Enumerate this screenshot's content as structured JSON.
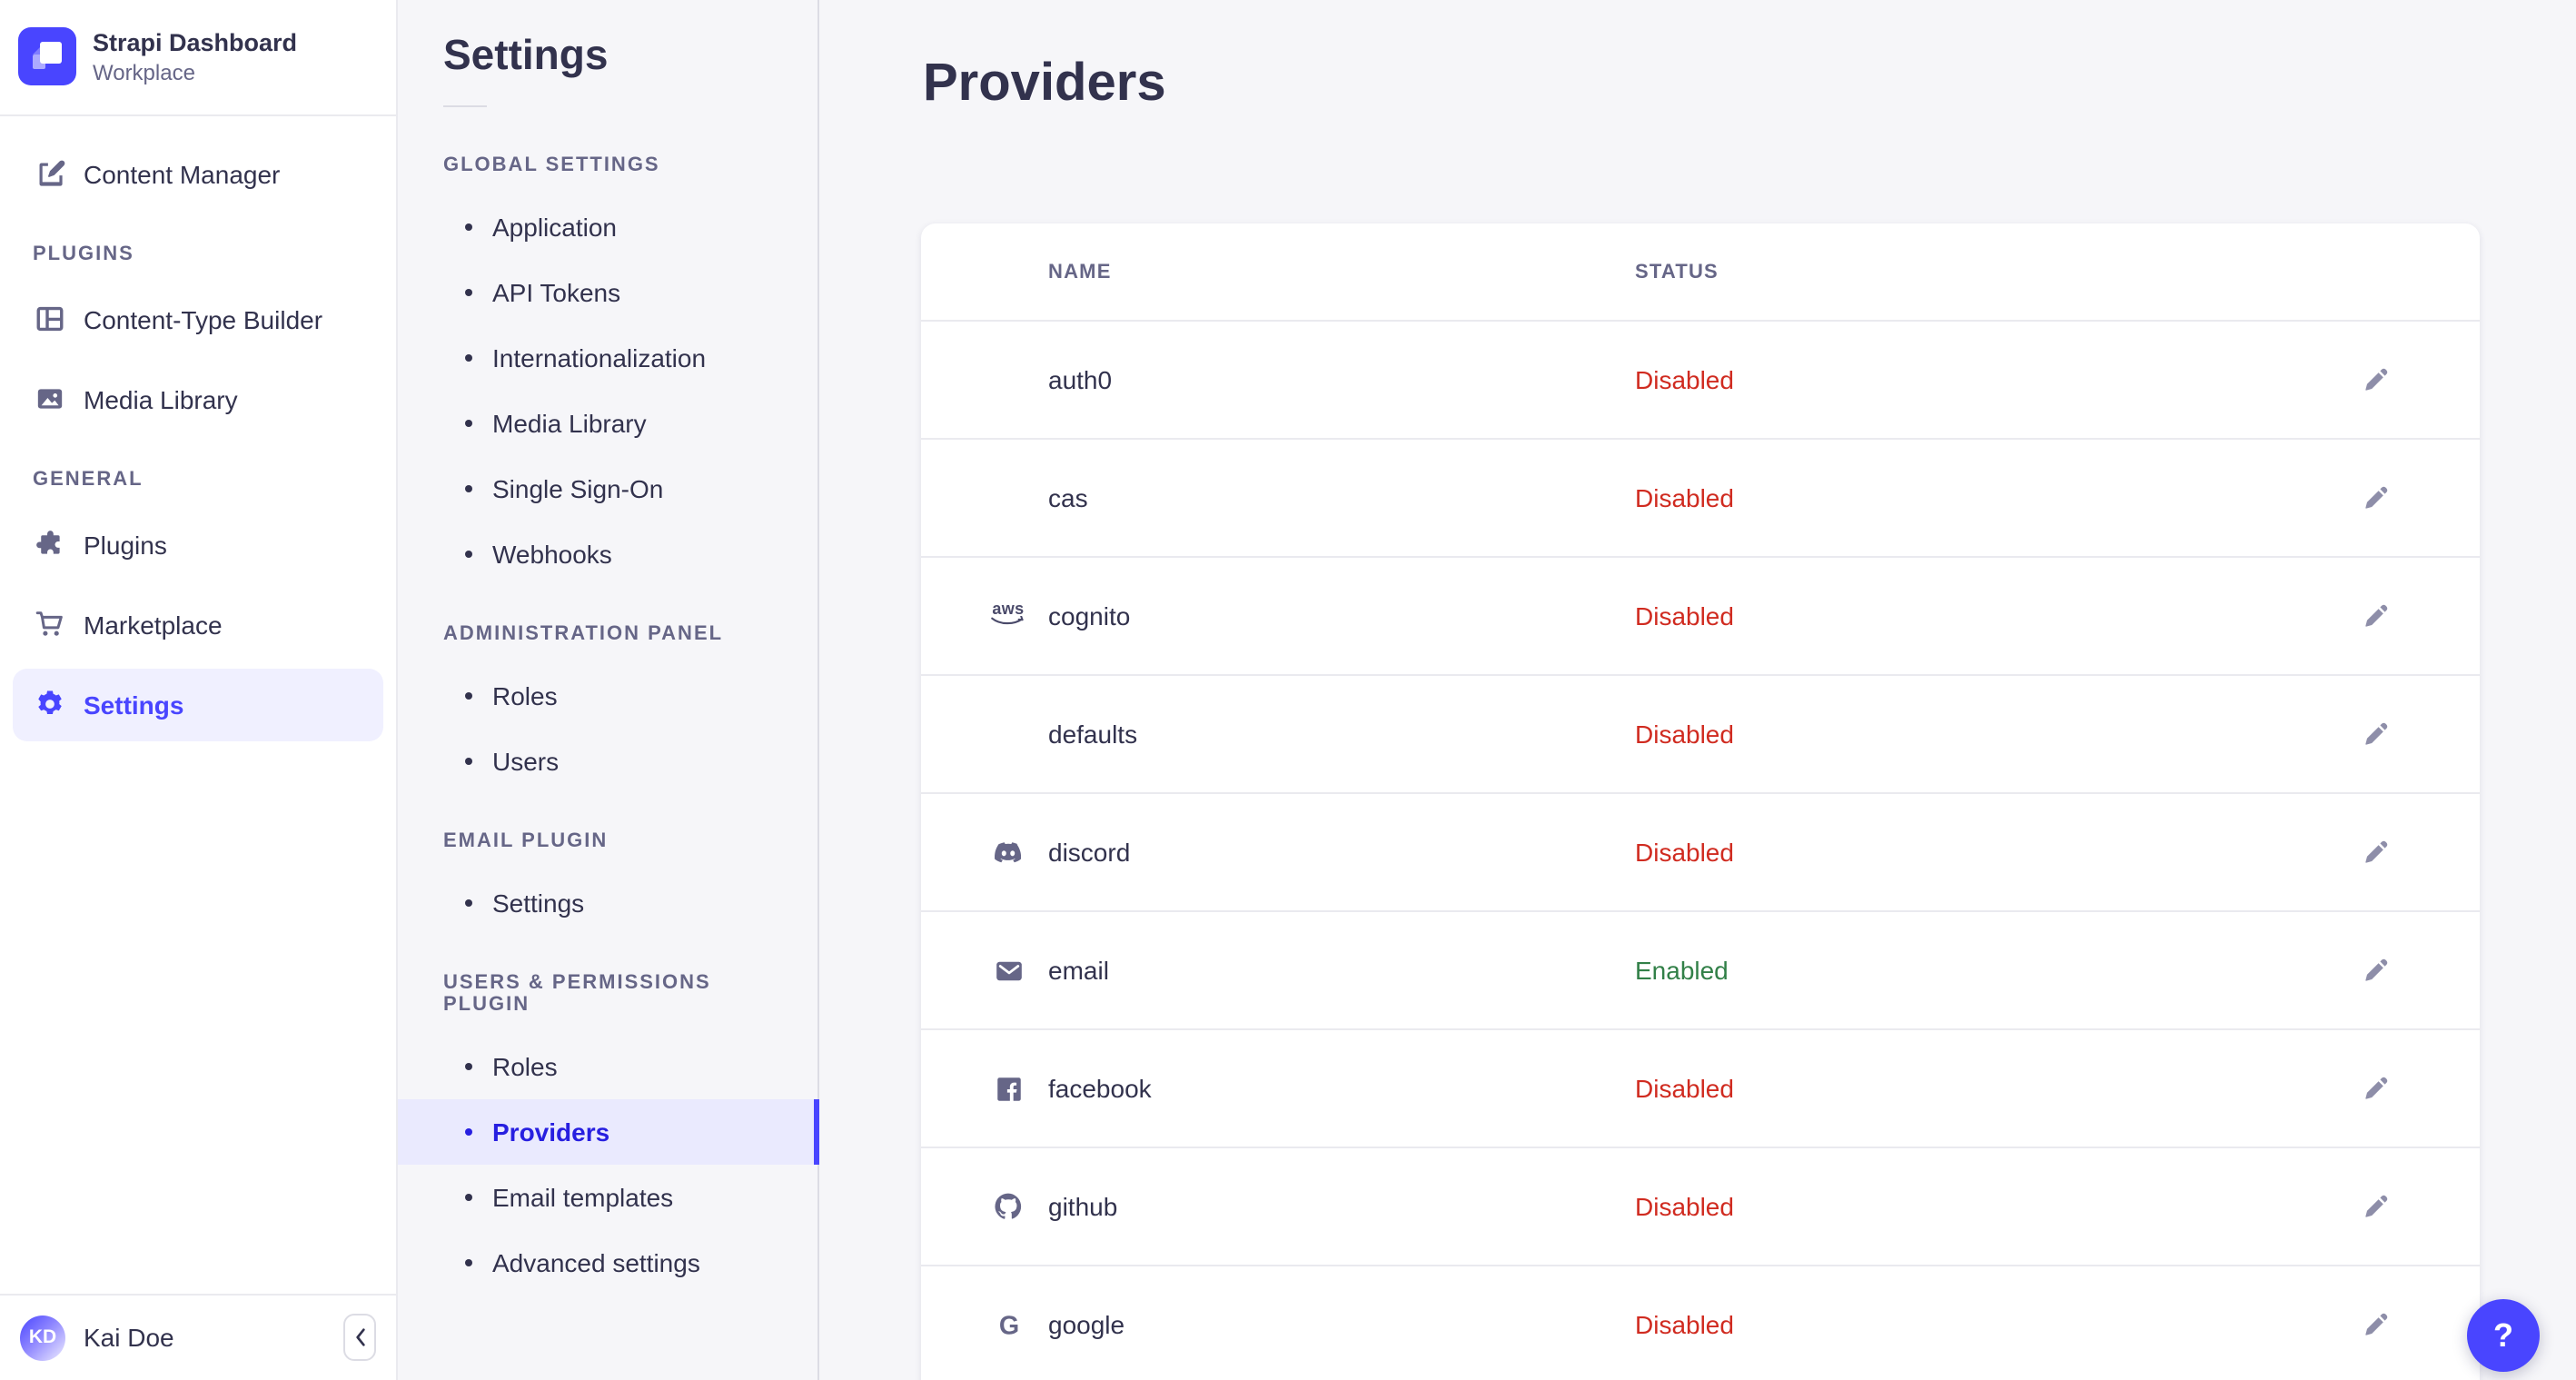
{
  "app": {
    "title": "Strapi Dashboard",
    "workspace": "Workplace"
  },
  "sidebar": {
    "primary_item": {
      "label": "Content Manager",
      "icon": "content-manager-icon"
    },
    "sections": [
      {
        "label": "PLUGINS",
        "items": [
          {
            "label": "Content-Type Builder",
            "icon": "content-type-builder-icon"
          },
          {
            "label": "Media Library",
            "icon": "media-library-icon"
          }
        ]
      },
      {
        "label": "GENERAL",
        "items": [
          {
            "label": "Plugins",
            "icon": "plugins-icon"
          },
          {
            "label": "Marketplace",
            "icon": "marketplace-icon"
          },
          {
            "label": "Settings",
            "icon": "settings-gear-icon",
            "active": true
          }
        ]
      }
    ],
    "user": {
      "initials": "KD",
      "name": "Kai Doe"
    }
  },
  "subnav": {
    "title": "Settings",
    "sections": [
      {
        "label": "GLOBAL SETTINGS",
        "items": [
          {
            "label": "Application"
          },
          {
            "label": "API Tokens"
          },
          {
            "label": "Internationalization"
          },
          {
            "label": "Media Library"
          },
          {
            "label": "Single Sign-On"
          },
          {
            "label": "Webhooks"
          }
        ]
      },
      {
        "label": "ADMINISTRATION PANEL",
        "items": [
          {
            "label": "Roles"
          },
          {
            "label": "Users"
          }
        ]
      },
      {
        "label": "EMAIL PLUGIN",
        "items": [
          {
            "label": "Settings"
          }
        ]
      },
      {
        "label": "USERS & PERMISSIONS PLUGIN",
        "items": [
          {
            "label": "Roles"
          },
          {
            "label": "Providers",
            "active": true
          },
          {
            "label": "Email templates"
          },
          {
            "label": "Advanced settings"
          }
        ]
      }
    ]
  },
  "main": {
    "page_title": "Providers",
    "table": {
      "columns": [
        "NAME",
        "STATUS"
      ],
      "rows": [
        {
          "name": "auth0",
          "icon": null,
          "status": "Disabled"
        },
        {
          "name": "cas",
          "icon": null,
          "status": "Disabled"
        },
        {
          "name": "cognito",
          "icon": "aws-icon",
          "status": "Disabled"
        },
        {
          "name": "defaults",
          "icon": null,
          "status": "Disabled"
        },
        {
          "name": "discord",
          "icon": "discord-icon",
          "status": "Disabled"
        },
        {
          "name": "email",
          "icon": "email-icon",
          "status": "Enabled"
        },
        {
          "name": "facebook",
          "icon": "facebook-icon",
          "status": "Disabled"
        },
        {
          "name": "github",
          "icon": "github-icon",
          "status": "Disabled"
        },
        {
          "name": "google",
          "icon": "google-icon",
          "status": "Disabled"
        }
      ]
    }
  },
  "help": {
    "label": "?"
  },
  "colors": {
    "primary": "#4945FF",
    "primary_light": "#F0F0FF",
    "subnav_active_text": "#271FE0",
    "status_enabled": "#328048",
    "status_disabled": "#D02B20"
  },
  "status_colors": {
    "Enabled": "#328048",
    "Disabled": "#D02B20"
  }
}
